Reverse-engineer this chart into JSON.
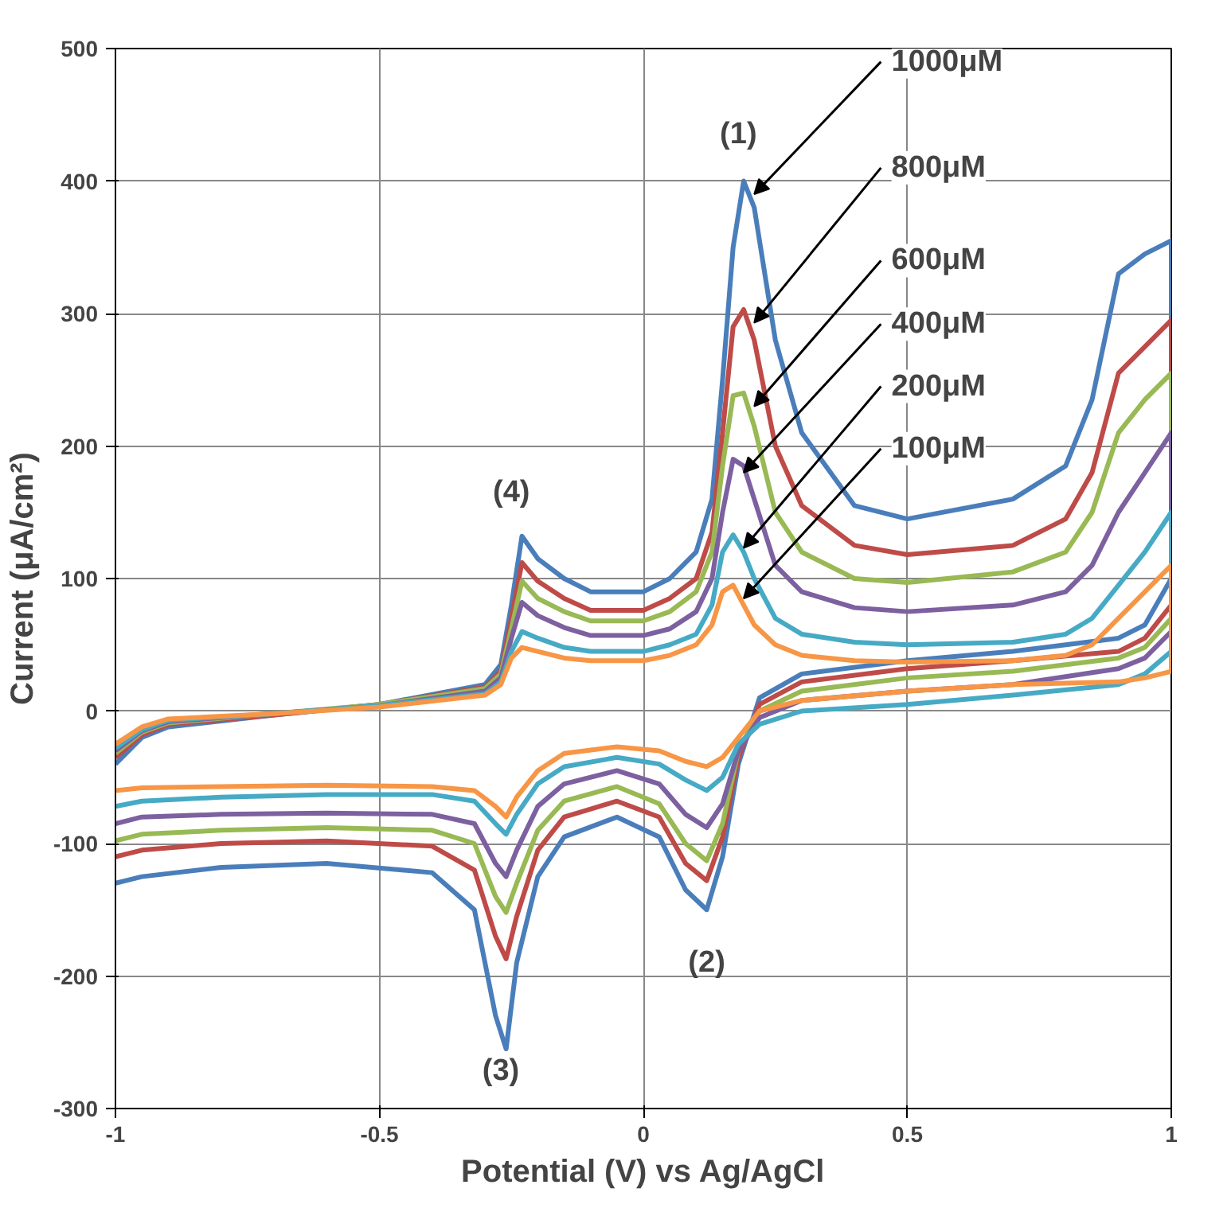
{
  "chart_data": {
    "type": "line",
    "xlabel": "Potential (V) vs Ag/AgCl",
    "ylabel": "Current (μA/cm²)",
    "xlim": [
      -1,
      1
    ],
    "ylim": [
      -300,
      500
    ],
    "xticks": [
      -1,
      -0.5,
      0,
      0.5,
      1
    ],
    "yticks": [
      -300,
      -200,
      -100,
      0,
      100,
      200,
      300,
      400,
      500
    ],
    "grid": true,
    "legend": false,
    "marker": "none",
    "line_style": "solid",
    "x": [
      -1,
      -0.95,
      -0.9,
      -0.7,
      -0.5,
      -0.3,
      -0.27,
      -0.25,
      -0.23,
      -0.2,
      -0.15,
      -0.1,
      0,
      0.05,
      0.1,
      0.13,
      0.15,
      0.17,
      0.19,
      0.21,
      0.25,
      0.3,
      0.4,
      0.5,
      0.7,
      0.8,
      0.85,
      0.9,
      0.95,
      1,
      1,
      0.95,
      0.9,
      0.7,
      0.5,
      0.3,
      0.22,
      0.18,
      0.15,
      0.12,
      0.08,
      0.03,
      -0.05,
      -0.15,
      -0.2,
      -0.24,
      -0.26,
      -0.28,
      -0.32,
      -0.4,
      -0.6,
      -0.8,
      -0.95,
      -1
    ],
    "series": [
      {
        "name": "1000μM",
        "color": "#4a7ebb",
        "values": [
          -40,
          -20,
          -12,
          -3,
          5,
          20,
          35,
          80,
          132,
          115,
          100,
          90,
          90,
          100,
          120,
          160,
          250,
          350,
          400,
          380,
          280,
          210,
          155,
          145,
          160,
          185,
          235,
          330,
          345,
          355,
          100,
          65,
          55,
          45,
          38,
          28,
          10,
          -40,
          -110,
          -150,
          -135,
          -95,
          -80,
          -95,
          -125,
          -190,
          -255,
          -230,
          -150,
          -122,
          -115,
          -118,
          -125,
          -130
        ]
      },
      {
        "name": "800μM",
        "color": "#be4b48",
        "values": [
          -35,
          -18,
          -10,
          -3,
          5,
          18,
          30,
          70,
          112,
          98,
          85,
          76,
          76,
          85,
          100,
          135,
          210,
          290,
          303,
          280,
          200,
          155,
          125,
          118,
          125,
          145,
          180,
          255,
          275,
          295,
          80,
          55,
          45,
          38,
          32,
          22,
          5,
          -35,
          -95,
          -128,
          -115,
          -80,
          -68,
          -80,
          -105,
          -155,
          -187,
          -170,
          -120,
          -102,
          -98,
          -100,
          -105,
          -110
        ]
      },
      {
        "name": "600μM",
        "color": "#98b954",
        "values": [
          -32,
          -16,
          -9,
          -2,
          5,
          17,
          28,
          62,
          98,
          85,
          75,
          68,
          68,
          75,
          90,
          120,
          185,
          238,
          240,
          215,
          150,
          120,
          100,
          97,
          105,
          120,
          150,
          210,
          235,
          255,
          70,
          48,
          40,
          30,
          25,
          15,
          0,
          -30,
          -85,
          -113,
          -100,
          -70,
          -57,
          -68,
          -90,
          -130,
          -152,
          -140,
          -100,
          -90,
          -88,
          -90,
          -93,
          -98
        ]
      },
      {
        "name": "400μM",
        "color": "#7d60a0",
        "values": [
          -30,
          -15,
          -8,
          -2,
          4,
          15,
          25,
          55,
          82,
          72,
          63,
          57,
          57,
          62,
          75,
          100,
          150,
          190,
          185,
          160,
          110,
          90,
          78,
          75,
          80,
          90,
          110,
          150,
          180,
          210,
          60,
          40,
          32,
          20,
          15,
          8,
          -5,
          -30,
          -70,
          -88,
          -78,
          -55,
          -45,
          -55,
          -72,
          -105,
          -125,
          -115,
          -85,
          -78,
          -77,
          -78,
          -80,
          -85
        ]
      },
      {
        "name": "200μM",
        "color": "#46aac5",
        "values": [
          -28,
          -14,
          -7,
          -2,
          4,
          13,
          22,
          45,
          60,
          55,
          48,
          45,
          45,
          50,
          58,
          80,
          120,
          133,
          120,
          100,
          70,
          58,
          52,
          50,
          52,
          58,
          70,
          95,
          120,
          150,
          45,
          28,
          20,
          12,
          5,
          0,
          -10,
          -25,
          -50,
          -60,
          -52,
          -40,
          -35,
          -42,
          -55,
          -78,
          -93,
          -85,
          -68,
          -63,
          -63,
          -65,
          -68,
          -72
        ]
      },
      {
        "name": "100μM",
        "color": "#f79646",
        "values": [
          -25,
          -12,
          -6,
          -2,
          3,
          12,
          20,
          40,
          48,
          45,
          40,
          38,
          38,
          42,
          50,
          65,
          90,
          95,
          80,
          65,
          50,
          42,
          38,
          37,
          38,
          42,
          50,
          70,
          90,
          110,
          30,
          25,
          22,
          20,
          15,
          8,
          0,
          -20,
          -35,
          -42,
          -38,
          -30,
          -27,
          -32,
          -45,
          -65,
          -80,
          -72,
          -60,
          -57,
          -56,
          -57,
          -58,
          -60
        ]
      }
    ],
    "annotations": [
      "(1)",
      "(2)",
      "(3)",
      "(4)"
    ]
  }
}
